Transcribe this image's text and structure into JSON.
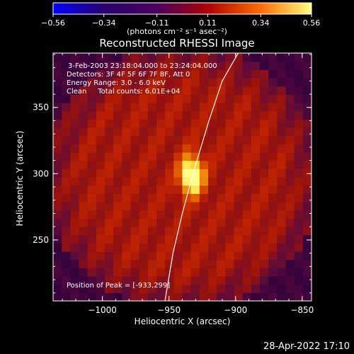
{
  "chart_data": {
    "type": "heatmap",
    "title": "Reconstructed RHESSI Image",
    "xlabel": "Heliocentric X (arcsec)",
    "ylabel": "Heliocentric Y (arcsec)",
    "xlim": [
      -1037,
      -843
    ],
    "ylim": [
      204,
      391
    ],
    "x_ticks": [
      -1000,
      -950,
      -900,
      -850
    ],
    "x_tick_labels": [
      "−1000",
      "−950",
      "−900",
      "−850"
    ],
    "y_ticks": [
      250,
      300,
      350
    ],
    "y_tick_labels": [
      "250",
      "300",
      "350"
    ],
    "colorbar": {
      "range": [
        -0.56,
        0.56
      ],
      "ticks": [
        -0.56,
        -0.34,
        -0.11,
        0.11,
        0.34,
        0.56
      ],
      "tick_labels": [
        "−0.56",
        "−0.34",
        "−0.11",
        "0.11",
        "0.34",
        "0.56"
      ],
      "colors": [
        "#0000ff",
        "#2a006e",
        "#4a0060",
        "#b00000",
        "#ff6a00",
        "#ffff80"
      ]
    },
    "peak": {
      "x": -933,
      "y": 299,
      "value": 0.56
    },
    "annotations": [
      "3-Feb-2003 23:18:04.000 to 23:24:04.000",
      "Detectors: 3F 4F 5F 6F 7F 8F, Att 0",
      "Energy Range: 3.0 - 6.0 keV",
      "Clean     Total counts: 6.01E+04"
    ],
    "peak_label": "Position of Peak = [-933,299]",
    "limb_curve": [
      [
        -953,
        204
      ],
      [
        -947,
        240
      ],
      [
        -940,
        270
      ],
      [
        -932,
        300
      ],
      [
        -920,
        340
      ],
      [
        -910,
        370
      ],
      [
        -898,
        391
      ]
    ],
    "grid": false
  },
  "colorbar_unit": "(photons cm⁻² s⁻¹ asec⁻²)",
  "footer_timestamp": "28-Apr-2022 17:10"
}
